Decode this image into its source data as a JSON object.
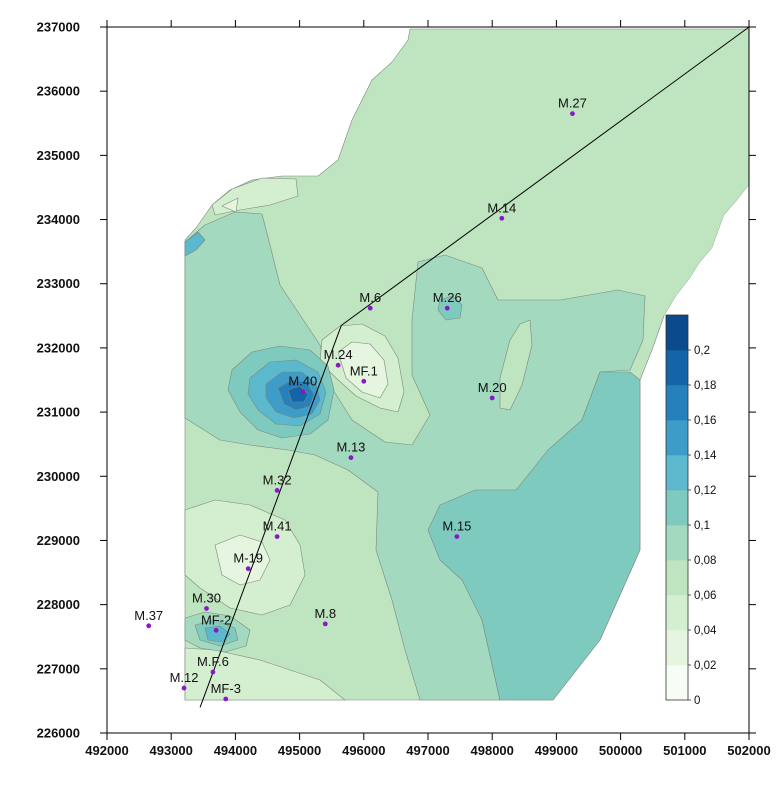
{
  "map": {
    "x_ticks": [
      "492000",
      "493000",
      "494000",
      "495000",
      "496000",
      "497000",
      "498000",
      "499000",
      "500000",
      "501000",
      "502000"
    ],
    "y_ticks": [
      "226000",
      "227000",
      "228000",
      "229000",
      "230000",
      "231000",
      "232000",
      "233000",
      "234000",
      "235000",
      "236000",
      "237000"
    ],
    "colorbar": {
      "labels": [
        "0",
        "0,02",
        "0,04",
        "0,06",
        "0,08",
        "0,1",
        "0,12",
        "0,14",
        "0,16",
        "0,18",
        "0,2"
      ],
      "colors": [
        "#f7fcf5",
        "#e5f5e0",
        "#d4eed0",
        "#bfe4c0",
        "#a3d9bf",
        "#7fcabe",
        "#5cb8cc",
        "#3d9cc8",
        "#2580bb",
        "#1464a8",
        "#0b4a8c"
      ]
    },
    "wells": [
      {
        "name": "M.27",
        "x": 499250,
        "y": 235650
      },
      {
        "name": "M.14",
        "x": 498150,
        "y": 234020
      },
      {
        "name": "M.6",
        "x": 496100,
        "y": 232620
      },
      {
        "name": "M.26",
        "x": 497300,
        "y": 232620
      },
      {
        "name": "M.24",
        "x": 495600,
        "y": 231730
      },
      {
        "name": "MF.1",
        "x": 496000,
        "y": 231480
      },
      {
        "name": "M.40",
        "x": 495050,
        "y": 231320
      },
      {
        "name": "M.20",
        "x": 498000,
        "y": 231220
      },
      {
        "name": "M.13",
        "x": 495800,
        "y": 230290
      },
      {
        "name": "M.32",
        "x": 494650,
        "y": 229780
      },
      {
        "name": "M.41",
        "x": 494650,
        "y": 229060
      },
      {
        "name": "M.15",
        "x": 497450,
        "y": 229060
      },
      {
        "name": "M-19",
        "x": 494200,
        "y": 228560
      },
      {
        "name": "M.30",
        "x": 493550,
        "y": 227940
      },
      {
        "name": "M.37",
        "x": 492650,
        "y": 227670
      },
      {
        "name": "M.8",
        "x": 495400,
        "y": 227700
      },
      {
        "name": "MF-2",
        "x": 493700,
        "y": 227600
      },
      {
        "name": "M.F.6",
        "x": 493650,
        "y": 226950
      },
      {
        "name": "M.12",
        "x": 493200,
        "y": 226700
      },
      {
        "name": "MF-3",
        "x": 493850,
        "y": 226530
      }
    ],
    "profile_line": [
      [
        493450,
        226400
      ],
      [
        495650,
        232350
      ],
      [
        502000,
        237000
      ]
    ]
  }
}
